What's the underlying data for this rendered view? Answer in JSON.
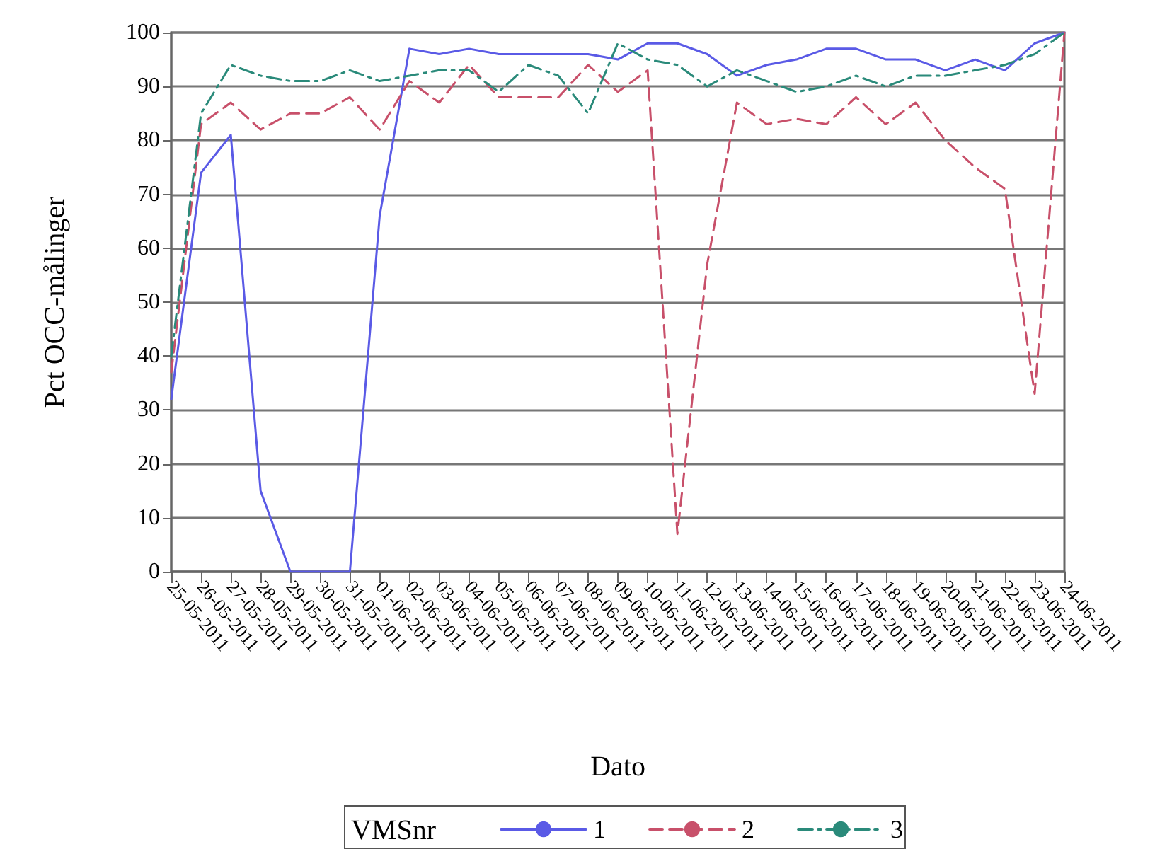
{
  "chart_data": {
    "type": "line",
    "xlabel": "Dato",
    "ylabel": "Pct OCC-målinger",
    "legend_title": "VMSnr",
    "categories": [
      "25-05-2011",
      "26-05-2011",
      "27-05-2011",
      "28-05-2011",
      "29-05-2011",
      "30-05-2011",
      "31-05-2011",
      "01-06-2011",
      "02-06-2011",
      "03-06-2011",
      "04-06-2011",
      "05-06-2011",
      "06-06-2011",
      "07-06-2011",
      "08-06-2011",
      "09-06-2011",
      "10-06-2011",
      "11-06-2011",
      "12-06-2011",
      "13-06-2011",
      "14-06-2011",
      "15-06-2011",
      "16-06-2011",
      "17-06-2011",
      "18-06-2011",
      "19-06-2011",
      "20-06-2011",
      "21-06-2011",
      "22-06-2011",
      "23-06-2011",
      "24-06-2011"
    ],
    "series": [
      {
        "name": "1",
        "color": "#5a5ae6",
        "line_style": "solid",
        "values": [
          32,
          74,
          81,
          15,
          0,
          0,
          0,
          66,
          97,
          96,
          97,
          96,
          96,
          96,
          96,
          95,
          98,
          98,
          96,
          92,
          94,
          95,
          97,
          97,
          95,
          95,
          93,
          95,
          93,
          98,
          100
        ]
      },
      {
        "name": "2",
        "color": "#c8506a",
        "line_style": "dashed",
        "values": [
          37,
          83,
          87,
          82,
          85,
          85,
          88,
          82,
          91,
          87,
          94,
          88,
          88,
          88,
          94,
          89,
          93,
          7,
          57,
          87,
          83,
          84,
          83,
          88,
          83,
          87,
          80,
          75,
          71,
          33,
          100
        ]
      },
      {
        "name": "3",
        "color": "#2a8a7a",
        "line_style": "dashdot",
        "values": [
          40,
          85,
          94,
          92,
          91,
          91,
          93,
          91,
          92,
          93,
          93,
          89,
          94,
          92,
          85,
          98,
          95,
          94,
          90,
          93,
          91,
          89,
          90,
          92,
          90,
          92,
          92,
          93,
          94,
          96,
          100
        ]
      }
    ],
    "ylim": [
      0,
      100
    ],
    "yticks": [
      0,
      10,
      20,
      30,
      40,
      50,
      60,
      70,
      80,
      90,
      100
    ],
    "grid": "y",
    "legend": "bottom",
    "marker": "none"
  }
}
